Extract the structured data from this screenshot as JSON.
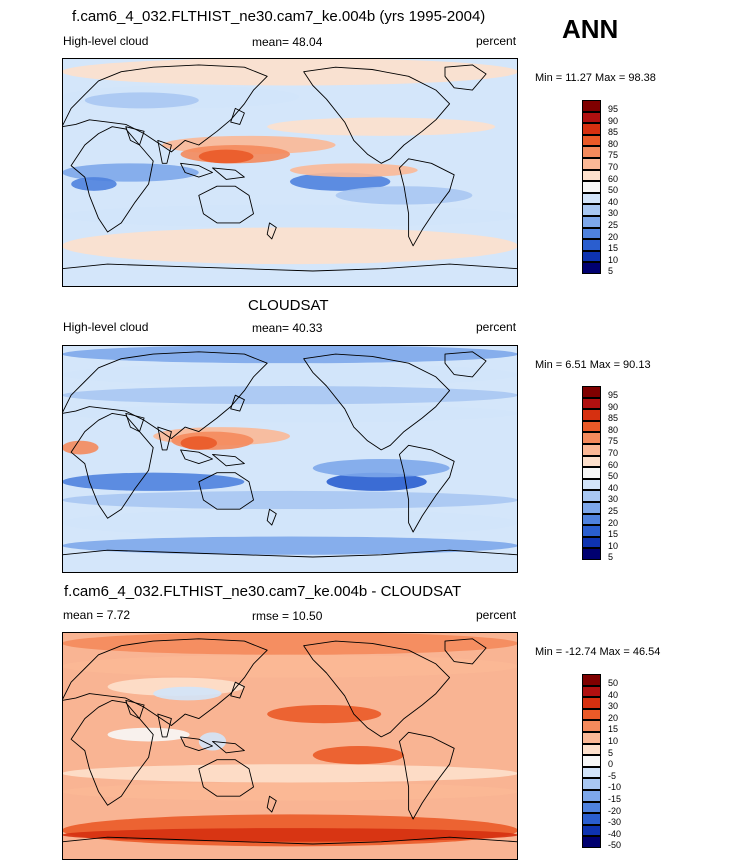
{
  "season": "ANN",
  "panels": [
    {
      "title": "f.cam6_4_032.FLTHIST_ne30.cam7_ke.004b (yrs 1995-2004)",
      "left": "High-level cloud",
      "center": "mean=  48.04",
      "right": "percent",
      "minmax": "Min =  11.27 Max =  98.38",
      "colorbar": [
        "95",
        "90",
        "85",
        "80",
        "75",
        "70",
        "60",
        "50",
        "40",
        "30",
        "25",
        "20",
        "15",
        "10",
        "5"
      ],
      "kind": "model"
    },
    {
      "title": "CLOUDSAT",
      "left": "High-level cloud",
      "center": "mean=  40.33",
      "right": "percent",
      "minmax": "Min =   6.51 Max =  90.13",
      "colorbar": [
        "95",
        "90",
        "85",
        "80",
        "75",
        "70",
        "60",
        "50",
        "40",
        "30",
        "25",
        "20",
        "15",
        "10",
        "5"
      ],
      "kind": "obs"
    },
    {
      "title": "f.cam6_4_032.FLTHIST_ne30.cam7_ke.004b - CLOUDSAT",
      "left": "mean =   7.72",
      "center": "rmse =  10.50",
      "right": "percent",
      "minmax": "Min = -12.74 Max =  46.54",
      "colorbar": [
        "50",
        "40",
        "30",
        "20",
        "15",
        "10",
        "5",
        "0",
        "-5",
        "-10",
        "-15",
        "-20",
        "-30",
        "-40",
        "-50"
      ],
      "kind": "diff"
    }
  ],
  "colors": {
    "palette": [
      "#7f0000",
      "#b01010",
      "#d63010",
      "#ea5a28",
      "#f48a5c",
      "#fbb896",
      "#fde0cc",
      "#f7f7f7",
      "#d2e4fa",
      "#a8c7f2",
      "#7da7ea",
      "#4f82de",
      "#2a5ecf",
      "#0e33b0",
      "#000070"
    ],
    "map_base": "#d4e6fa",
    "diff_base": "#f9b493",
    "outline": "#000000"
  }
}
